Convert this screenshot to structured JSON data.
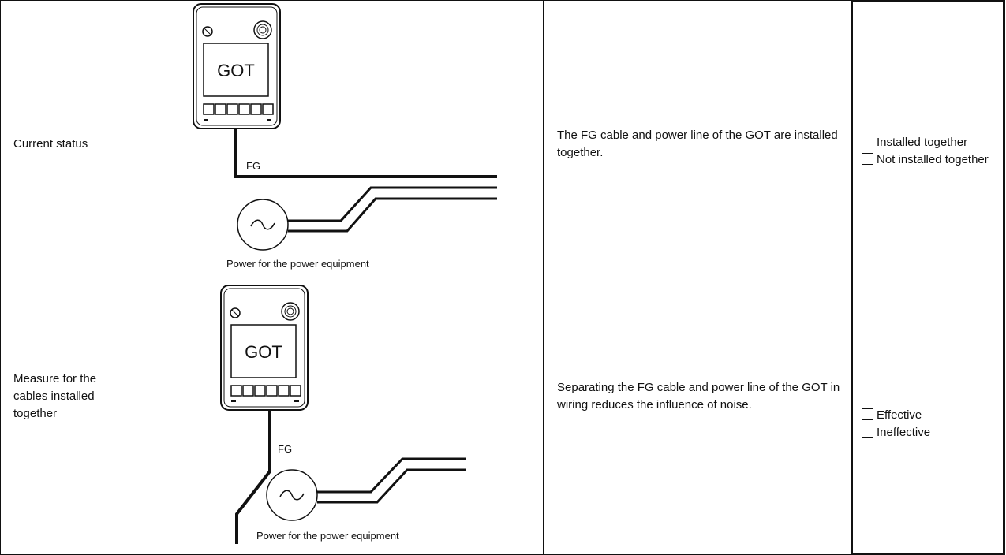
{
  "table": {
    "rows": [
      {
        "label": "Current status",
        "diagram": {
          "device": "GOT",
          "fg": "FG",
          "power": "Power for the power equipment"
        },
        "description": "The FG cable and power line of the GOT are installed together.",
        "options": [
          "Installed together",
          "Not installed together"
        ]
      },
      {
        "label": "Measure for the cables installed together",
        "diagram": {
          "device": "GOT",
          "fg": "FG",
          "power": "Power for the power equipment"
        },
        "description": "Separating the FG cable and power line of the GOT in wiring reduces the influence of noise.",
        "options": [
          "Effective",
          "Ineffective"
        ]
      }
    ]
  }
}
